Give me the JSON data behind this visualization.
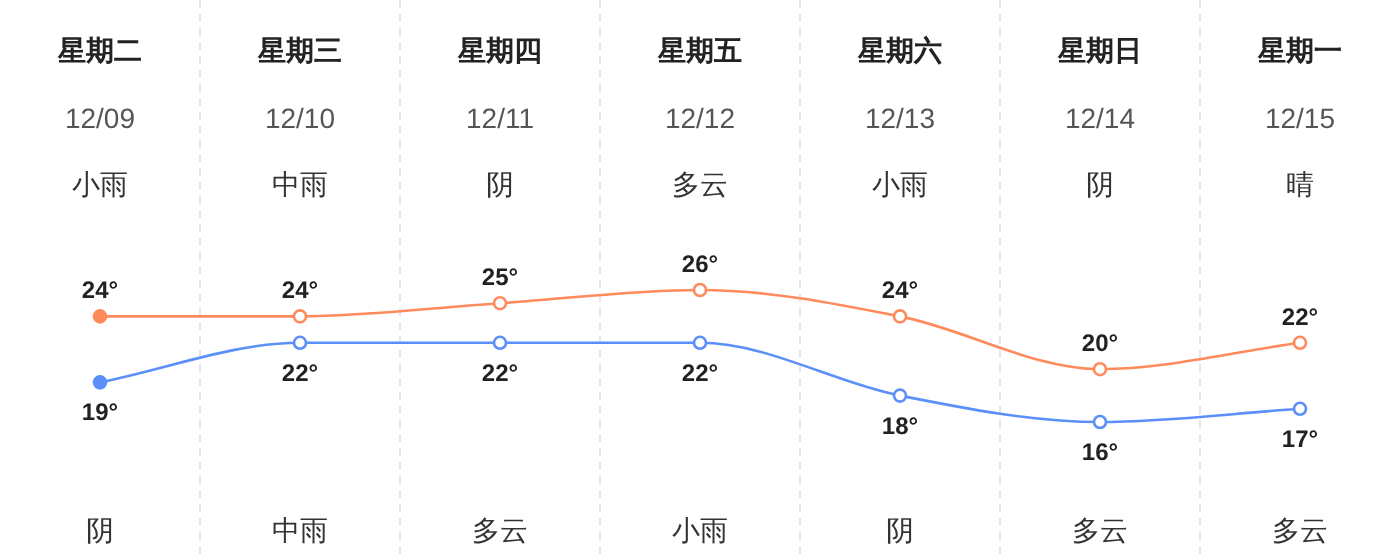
{
  "chart_data": {
    "type": "line",
    "marker": "circle",
    "categories": [
      "星期二\n12/09\n小雨",
      "星期三\n12/10\n中雨",
      "星期四\n12/11\n阴",
      "星期五\n12/12\n多云",
      "星期六\n12/13\n小雨",
      "星期日\n12/14\n阴",
      "星期一\n12/15\n晴"
    ],
    "series": [
      {
        "color": "#ff8a5c",
        "values": [
          24,
          24,
          25,
          26,
          24,
          20,
          22
        ],
        "value_labels": [
          "24°",
          "24°",
          "25°",
          "26°",
          "24°",
          "20°",
          "22°"
        ]
      },
      {
        "color": "#5b8ff9",
        "values": [
          19,
          22,
          22,
          22,
          18,
          16,
          17
        ],
        "value_labels": [
          "19°",
          "22°",
          "22°",
          "22°",
          "18°",
          "16°",
          "17°"
        ]
      }
    ],
    "annotations": [
      "阴",
      "中雨",
      "多云",
      "小雨",
      "阴",
      "多云",
      "多云"
    ]
  }
}
